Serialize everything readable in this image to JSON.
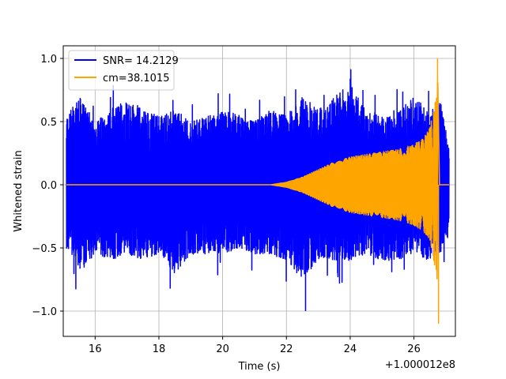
{
  "chart_data": {
    "type": "line",
    "title": "",
    "xlabel": "Time (s)",
    "ylabel": "Whitened strain",
    "x_offset_label": "+1.000012e8",
    "xlim": [
      15.0,
      27.3
    ],
    "ylim": [
      -1.2,
      1.1
    ],
    "x_ticks": [
      16,
      18,
      20,
      22,
      24,
      26
    ],
    "y_ticks": [
      -1.0,
      -0.5,
      0.0,
      0.5,
      1.0
    ],
    "x_tick_labels": [
      "16",
      "18",
      "20",
      "22",
      "24",
      "26"
    ],
    "y_tick_labels": [
      "−1.0",
      "−0.5",
      "0.0",
      "0.5",
      "1.0"
    ],
    "grid": true,
    "legend_position": "upper left",
    "series": [
      {
        "name": "SNR= 14.2129",
        "color": "#0000ff",
        "style": "noisy whitened strain, amplitude about 0.25-0.5 with spikes up to about 0.85 and down to about -1.0",
        "x": [
          15.1,
          15.5,
          16.0,
          16.5,
          17.0,
          17.5,
          18.0,
          18.5,
          19.0,
          19.5,
          20.0,
          20.5,
          21.0,
          21.5,
          22.0,
          22.5,
          23.0,
          23.5,
          24.0,
          24.5,
          25.0,
          25.5,
          26.0,
          26.5,
          26.8,
          27.1
        ],
        "upper_envelope": [
          0.55,
          0.7,
          0.5,
          0.6,
          0.68,
          0.6,
          0.55,
          0.6,
          0.5,
          0.55,
          0.6,
          0.55,
          0.5,
          0.6,
          0.55,
          0.7,
          0.6,
          0.7,
          0.8,
          0.6,
          0.55,
          0.6,
          0.7,
          0.6,
          0.7,
          0.3
        ],
        "lower_envelope": [
          -0.5,
          -0.7,
          -0.55,
          -0.6,
          -0.55,
          -0.6,
          -0.55,
          -0.7,
          -0.55,
          -0.55,
          -0.55,
          -0.5,
          -0.55,
          -0.55,
          -0.6,
          -0.75,
          -0.6,
          -0.6,
          -0.6,
          -0.55,
          -0.6,
          -0.6,
          -0.55,
          -0.6,
          -0.55,
          -0.4
        ],
        "spikes": [
          {
            "x": 22.6,
            "y": -1.0
          },
          {
            "x": 24.0,
            "y": 0.84
          },
          {
            "x": 24.4,
            "y": 0.75
          }
        ]
      },
      {
        "name": "cm=38.1015",
        "color": "#ffa500",
        "style": "chirp template: flat zero until about 21.5 s, then oscillation with growing amplitude, peaking near 26.75 s, then ringdown to zero",
        "x": [
          15.1,
          21.5,
          22.0,
          22.5,
          23.0,
          23.5,
          24.0,
          24.5,
          25.0,
          25.5,
          26.0,
          26.3,
          26.5,
          26.7,
          26.75,
          26.8,
          27.1
        ],
        "amplitude": [
          0.0,
          0.0,
          0.02,
          0.06,
          0.12,
          0.18,
          0.22,
          0.24,
          0.26,
          0.28,
          0.32,
          0.37,
          0.45,
          0.7,
          1.0,
          0.0,
          0.0
        ],
        "extremes": [
          {
            "x": 26.74,
            "y": 1.0
          },
          {
            "x": 26.77,
            "y": -1.1
          }
        ]
      }
    ]
  }
}
